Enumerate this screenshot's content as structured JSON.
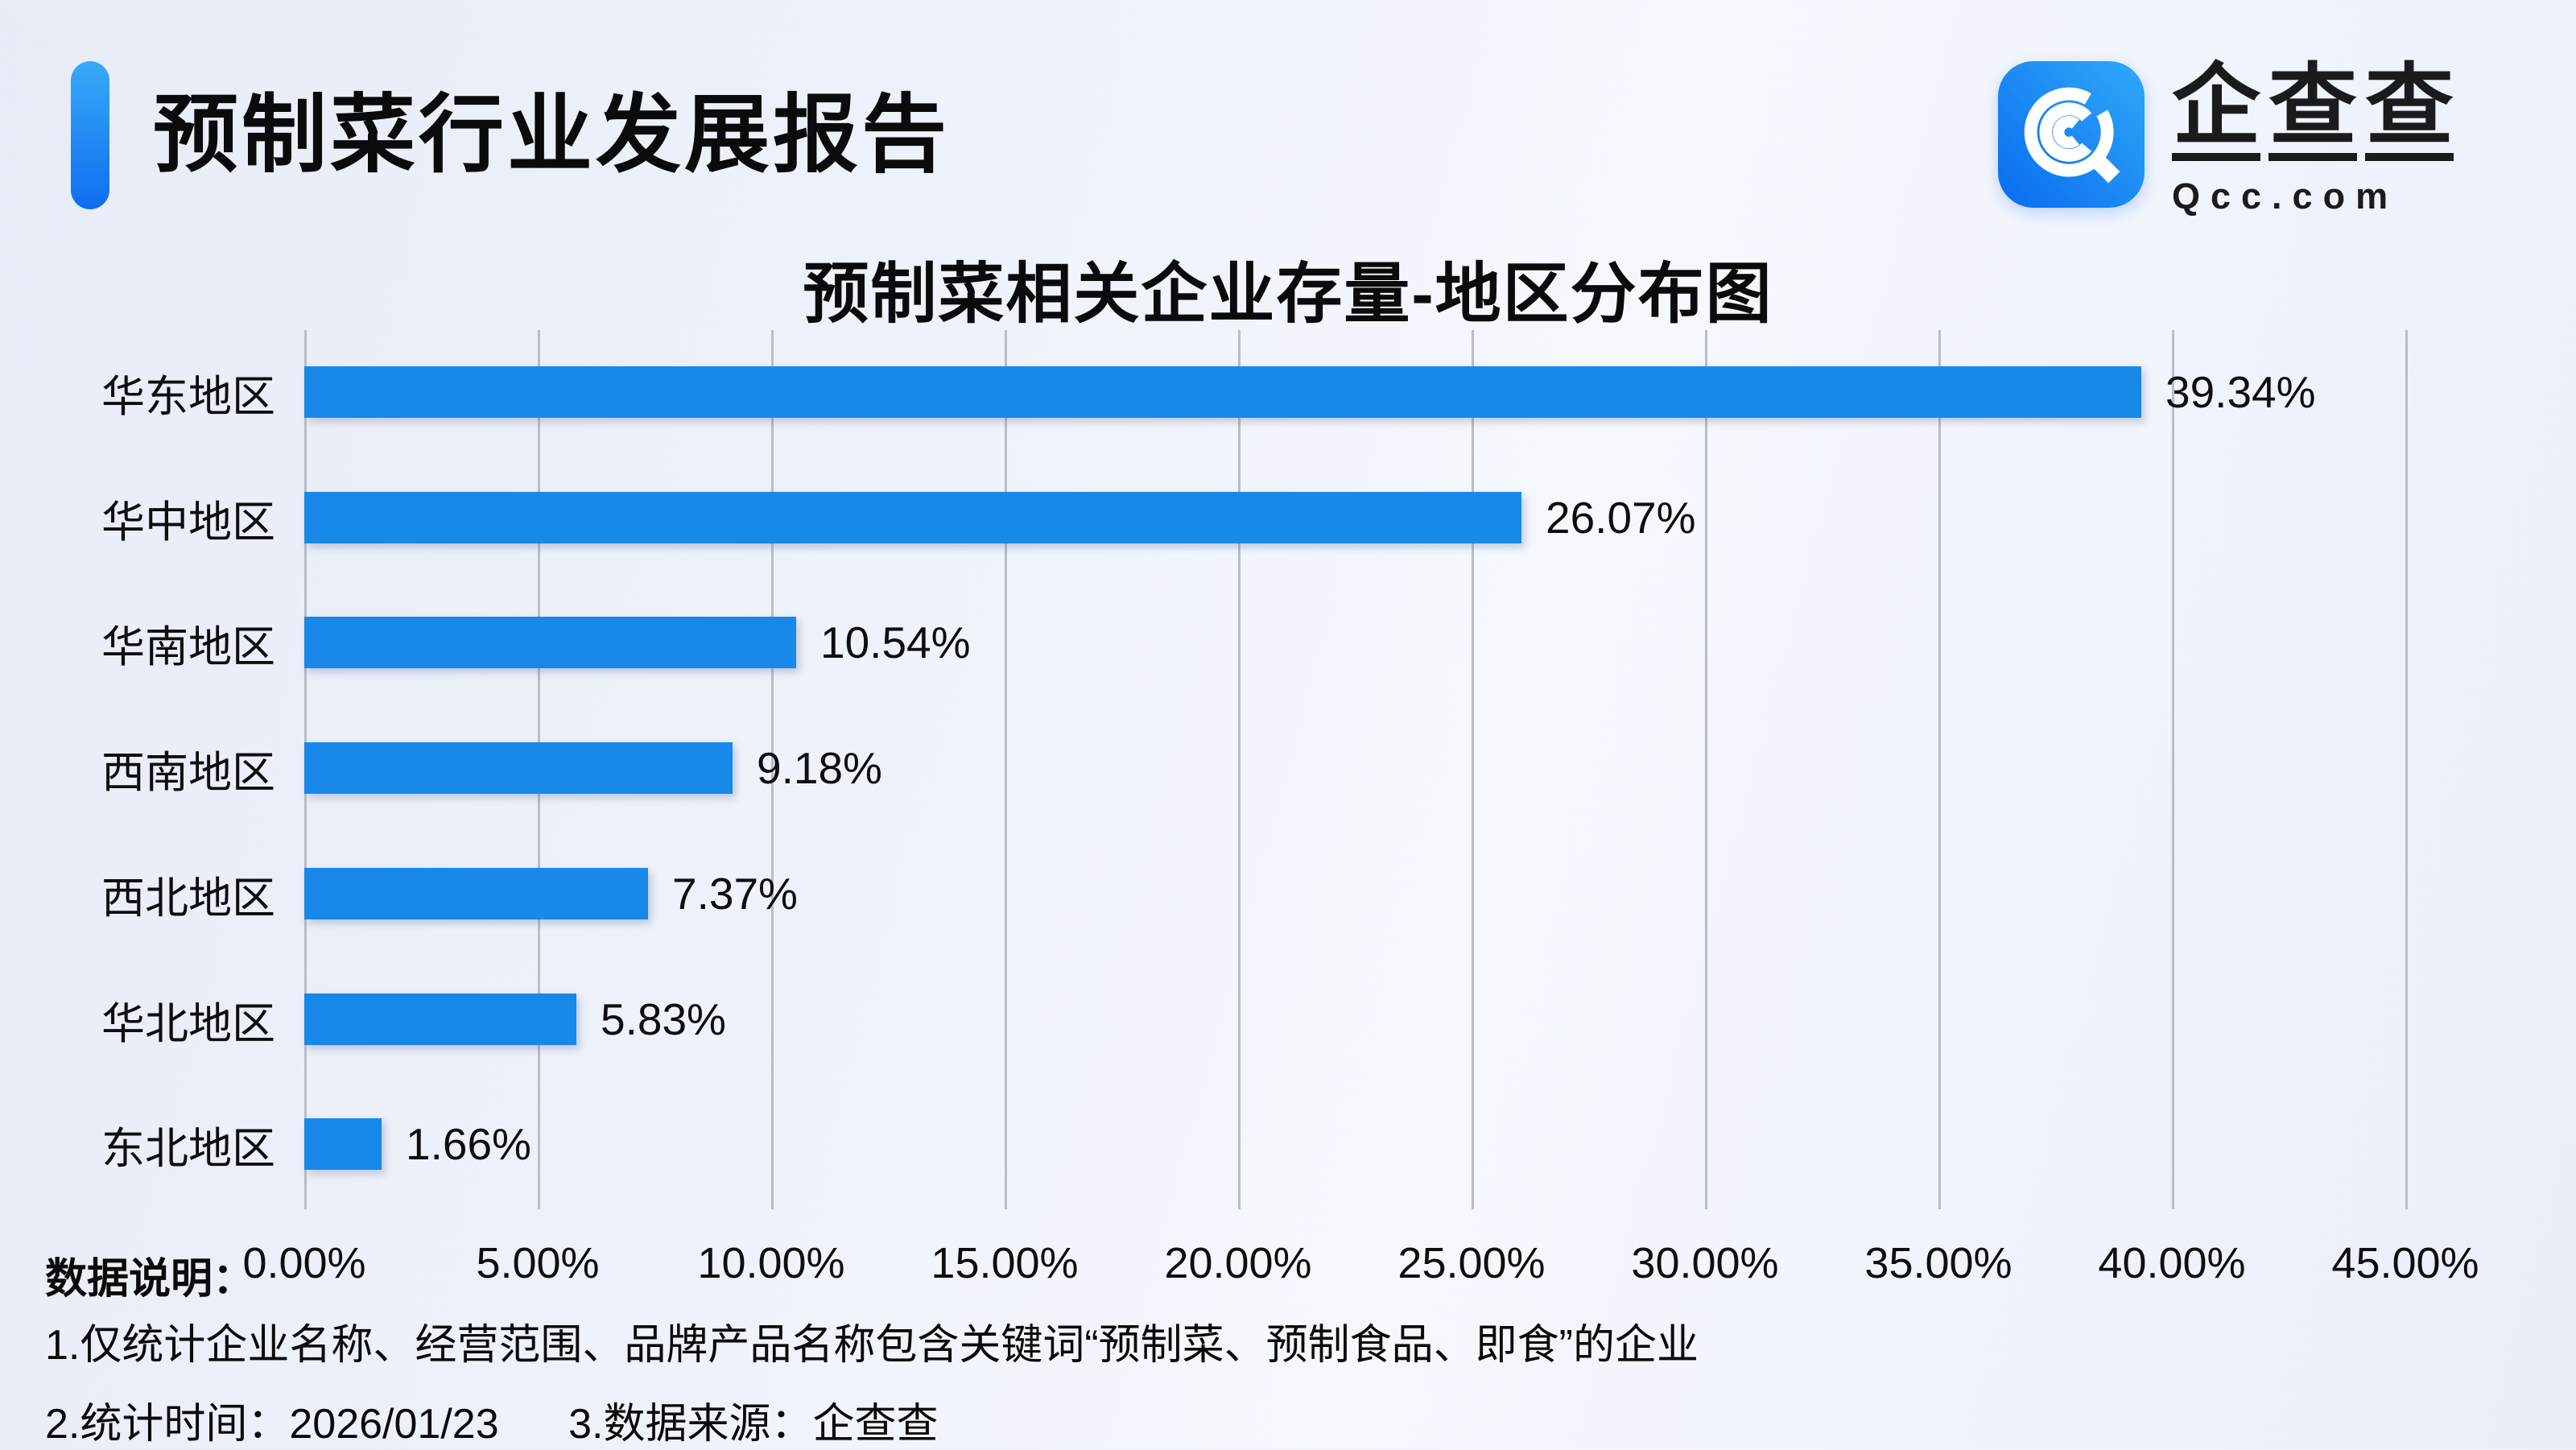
{
  "header": {
    "title": "预制菜行业发展报告",
    "logo": {
      "brand_chars": [
        "企",
        "查",
        "查"
      ],
      "domain": "Qcc.com"
    }
  },
  "footer": {
    "notes_label": "数据说明：",
    "note1": "1.仅统计企业名称、经营范围、品牌产品名称包含关键词“预制菜、预制食品、即食”的企业",
    "note2_time": "2.统计时间：2026/01/23",
    "note2_source": "3.数据来源：企查查"
  },
  "colors": {
    "bar": "#1889e8",
    "accent_top": "#38aaf8",
    "accent_bottom": "#0d6ef0",
    "gridline": "#b9bdc8",
    "text": "#111111",
    "background": "#eef2fa"
  },
  "chart_data": {
    "type": "bar",
    "orientation": "horizontal",
    "title": "预制菜相关企业存量-地区分布图",
    "categories": [
      "华东地区",
      "华中地区",
      "华南地区",
      "西南地区",
      "西北地区",
      "华北地区",
      "东北地区"
    ],
    "values": [
      39.34,
      26.07,
      10.54,
      9.18,
      7.37,
      5.83,
      1.66
    ],
    "value_labels": [
      "39.34%",
      "26.07%",
      "10.54%",
      "9.18%",
      "7.37%",
      "5.83%",
      "1.66%"
    ],
    "x_ticks": [
      "0.00%",
      "5.00%",
      "10.00%",
      "15.00%",
      "20.00%",
      "25.00%",
      "30.00%",
      "35.00%",
      "40.00%",
      "45.00%"
    ],
    "xlim": [
      0,
      45
    ],
    "grid": true,
    "legend": "none",
    "bar_color": "#1889e8"
  }
}
